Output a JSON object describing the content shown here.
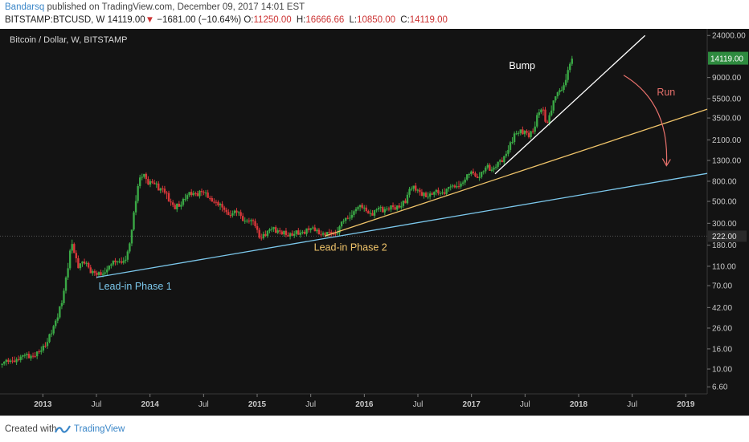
{
  "header": {
    "author": "Bandarsq",
    "published": "published on TradingView.com, December 09, 2017 14:01 EST",
    "symbol": "BITSTAMP:BTCUSD, W",
    "last": "14119.00",
    "change_arrow": "▼",
    "change": "−1681.00 (−10.64%)",
    "o_label": "O:",
    "o_val": "11250.00",
    "h_label": "H:",
    "h_val": "16666.66",
    "l_label": "L:",
    "l_val": "10850.00",
    "c_label": "C:",
    "c_val": "14119.00"
  },
  "footer": {
    "created_with": "Created with",
    "brand": "TradingView"
  },
  "colors": {
    "background": "#131313",
    "up": "#3aa845",
    "down": "#d8373a",
    "trend_white": "#ffffff",
    "trend_yellow": "#f0c46a",
    "trend_blue": "#7cc8ec",
    "run_arrow": "#e8716c",
    "price_tag": "#2e8b3f",
    "label_222": "#2a2a2a"
  },
  "chart_data": {
    "type": "candlestick",
    "title": "Bitcoin / Dollar, W, BITSTAMP",
    "y_scale": "log",
    "y_ticks": [
      "24000.00",
      "9000.00",
      "5500.00",
      "3500.00",
      "2100.00",
      "1300.00",
      "800.00",
      "500.00",
      "300.00",
      "180.00",
      "110.00",
      "70.00",
      "42.00",
      "26.00",
      "16.00",
      "10.00",
      "6.60"
    ],
    "y_tick_values": [
      24000,
      9000,
      5500,
      3500,
      2100,
      1300,
      800,
      500,
      300,
      180,
      110,
      70,
      42,
      26,
      16,
      10,
      6.6
    ],
    "ylim": [
      5.6,
      28000
    ],
    "x_ticks": [
      "2013",
      "Jul",
      "2014",
      "Jul",
      "2015",
      "Jul",
      "2016",
      "Jul",
      "2017",
      "Jul",
      "2018",
      "Jul",
      "2019"
    ],
    "x_tick_values": [
      2013.0,
      2013.5,
      2014.0,
      2014.5,
      2015.0,
      2015.5,
      2016.0,
      2016.5,
      2017.0,
      2017.5,
      2018.0,
      2018.5,
      2019.0
    ],
    "xlim": [
      2012.6,
      2019.2
    ],
    "last_price": "14119.00",
    "last_price_value": 14119,
    "level_222": "222.00",
    "level_222_value": 222,
    "price_path": [
      [
        2012.62,
        11
      ],
      [
        2012.72,
        12.5
      ],
      [
        2012.85,
        13.5
      ],
      [
        2012.95,
        14
      ],
      [
        2013.05,
        20
      ],
      [
        2013.12,
        30
      ],
      [
        2013.18,
        48
      ],
      [
        2013.22,
        90
      ],
      [
        2013.27,
        200
      ],
      [
        2013.3,
        140
      ],
      [
        2013.33,
        110
      ],
      [
        2013.4,
        120
      ],
      [
        2013.45,
        100
      ],
      [
        2013.5,
        88
      ],
      [
        2013.58,
        100
      ],
      [
        2013.65,
        115
      ],
      [
        2013.72,
        125
      ],
      [
        2013.78,
        135
      ],
      [
        2013.82,
        200
      ],
      [
        2013.86,
        480
      ],
      [
        2013.9,
        880
      ],
      [
        2013.94,
        900
      ],
      [
        2013.98,
        760
      ],
      [
        2014.03,
        820
      ],
      [
        2014.08,
        680
      ],
      [
        2014.13,
        640
      ],
      [
        2014.18,
        500
      ],
      [
        2014.23,
        440
      ],
      [
        2014.28,
        460
      ],
      [
        2014.33,
        560
      ],
      [
        2014.4,
        600
      ],
      [
        2014.47,
        610
      ],
      [
        2014.53,
        590
      ],
      [
        2014.6,
        500
      ],
      [
        2014.67,
        420
      ],
      [
        2014.73,
        380
      ],
      [
        2014.78,
        390
      ],
      [
        2014.83,
        370
      ],
      [
        2014.88,
        330
      ],
      [
        2014.93,
        310
      ],
      [
        2014.98,
        290
      ],
      [
        2015.02,
        220
      ],
      [
        2015.07,
        235
      ],
      [
        2015.13,
        260
      ],
      [
        2015.2,
        250
      ],
      [
        2015.27,
        230
      ],
      [
        2015.33,
        235
      ],
      [
        2015.4,
        240
      ],
      [
        2015.47,
        250
      ],
      [
        2015.53,
        270
      ],
      [
        2015.6,
        235
      ],
      [
        2015.67,
        230
      ],
      [
        2015.73,
        240
      ],
      [
        2015.78,
        290
      ],
      [
        2015.83,
        330
      ],
      [
        2015.88,
        380
      ],
      [
        2015.93,
        420
      ],
      [
        2015.98,
        430
      ],
      [
        2016.03,
        400
      ],
      [
        2016.08,
        380
      ],
      [
        2016.13,
        420
      ],
      [
        2016.2,
        415
      ],
      [
        2016.27,
        430
      ],
      [
        2016.33,
        450
      ],
      [
        2016.38,
        500
      ],
      [
        2016.43,
        700
      ],
      [
        2016.48,
        650
      ],
      [
        2016.53,
        600
      ],
      [
        2016.58,
        580
      ],
      [
        2016.63,
        600
      ],
      [
        2016.7,
        610
      ],
      [
        2016.77,
        650
      ],
      [
        2016.82,
        700
      ],
      [
        2016.87,
        750
      ],
      [
        2016.92,
        770
      ],
      [
        2016.97,
        900
      ],
      [
        2017.01,
        1000
      ],
      [
        2017.05,
        900
      ],
      [
        2017.1,
        950
      ],
      [
        2017.15,
        1150
      ],
      [
        2017.2,
        1050
      ],
      [
        2017.25,
        1200
      ],
      [
        2017.3,
        1350
      ],
      [
        2017.35,
        1800
      ],
      [
        2017.4,
        2400
      ],
      [
        2017.45,
        2500
      ],
      [
        2017.5,
        2500
      ],
      [
        2017.54,
        2300
      ],
      [
        2017.58,
        2700
      ],
      [
        2017.62,
        4000
      ],
      [
        2017.66,
        4300
      ],
      [
        2017.7,
        3000
      ],
      [
        2017.74,
        4200
      ],
      [
        2017.78,
        5500
      ],
      [
        2017.82,
        6500
      ],
      [
        2017.86,
        7500
      ],
      [
        2017.9,
        11000
      ],
      [
        2017.94,
        14119
      ]
    ],
    "trendlines": [
      {
        "color_key": "trend_blue",
        "from": [
          2013.5,
          85
        ],
        "to": [
          2019.2,
          960
        ]
      },
      {
        "color_key": "trend_yellow",
        "from": [
          2015.63,
          222
        ],
        "to": [
          2019.2,
          4300
        ]
      },
      {
        "color_key": "trend_white",
        "from": [
          2017.22,
          950
        ],
        "to": [
          2018.62,
          24000
        ]
      }
    ],
    "annotations": [
      {
        "text": "Lead-in Phase 1",
        "color_key": "trend_blue",
        "x": 2013.52,
        "y": 64
      },
      {
        "text": "Lead-in Phase 2",
        "color_key": "trend_yellow",
        "x": 2015.53,
        "y": 158
      },
      {
        "text": "Bump",
        "color_key": "trend_white",
        "x": 2017.35,
        "y": 11000
      },
      {
        "text": "Run",
        "color_key": "run_arrow",
        "x": 2018.73,
        "y": 5900
      }
    ]
  }
}
